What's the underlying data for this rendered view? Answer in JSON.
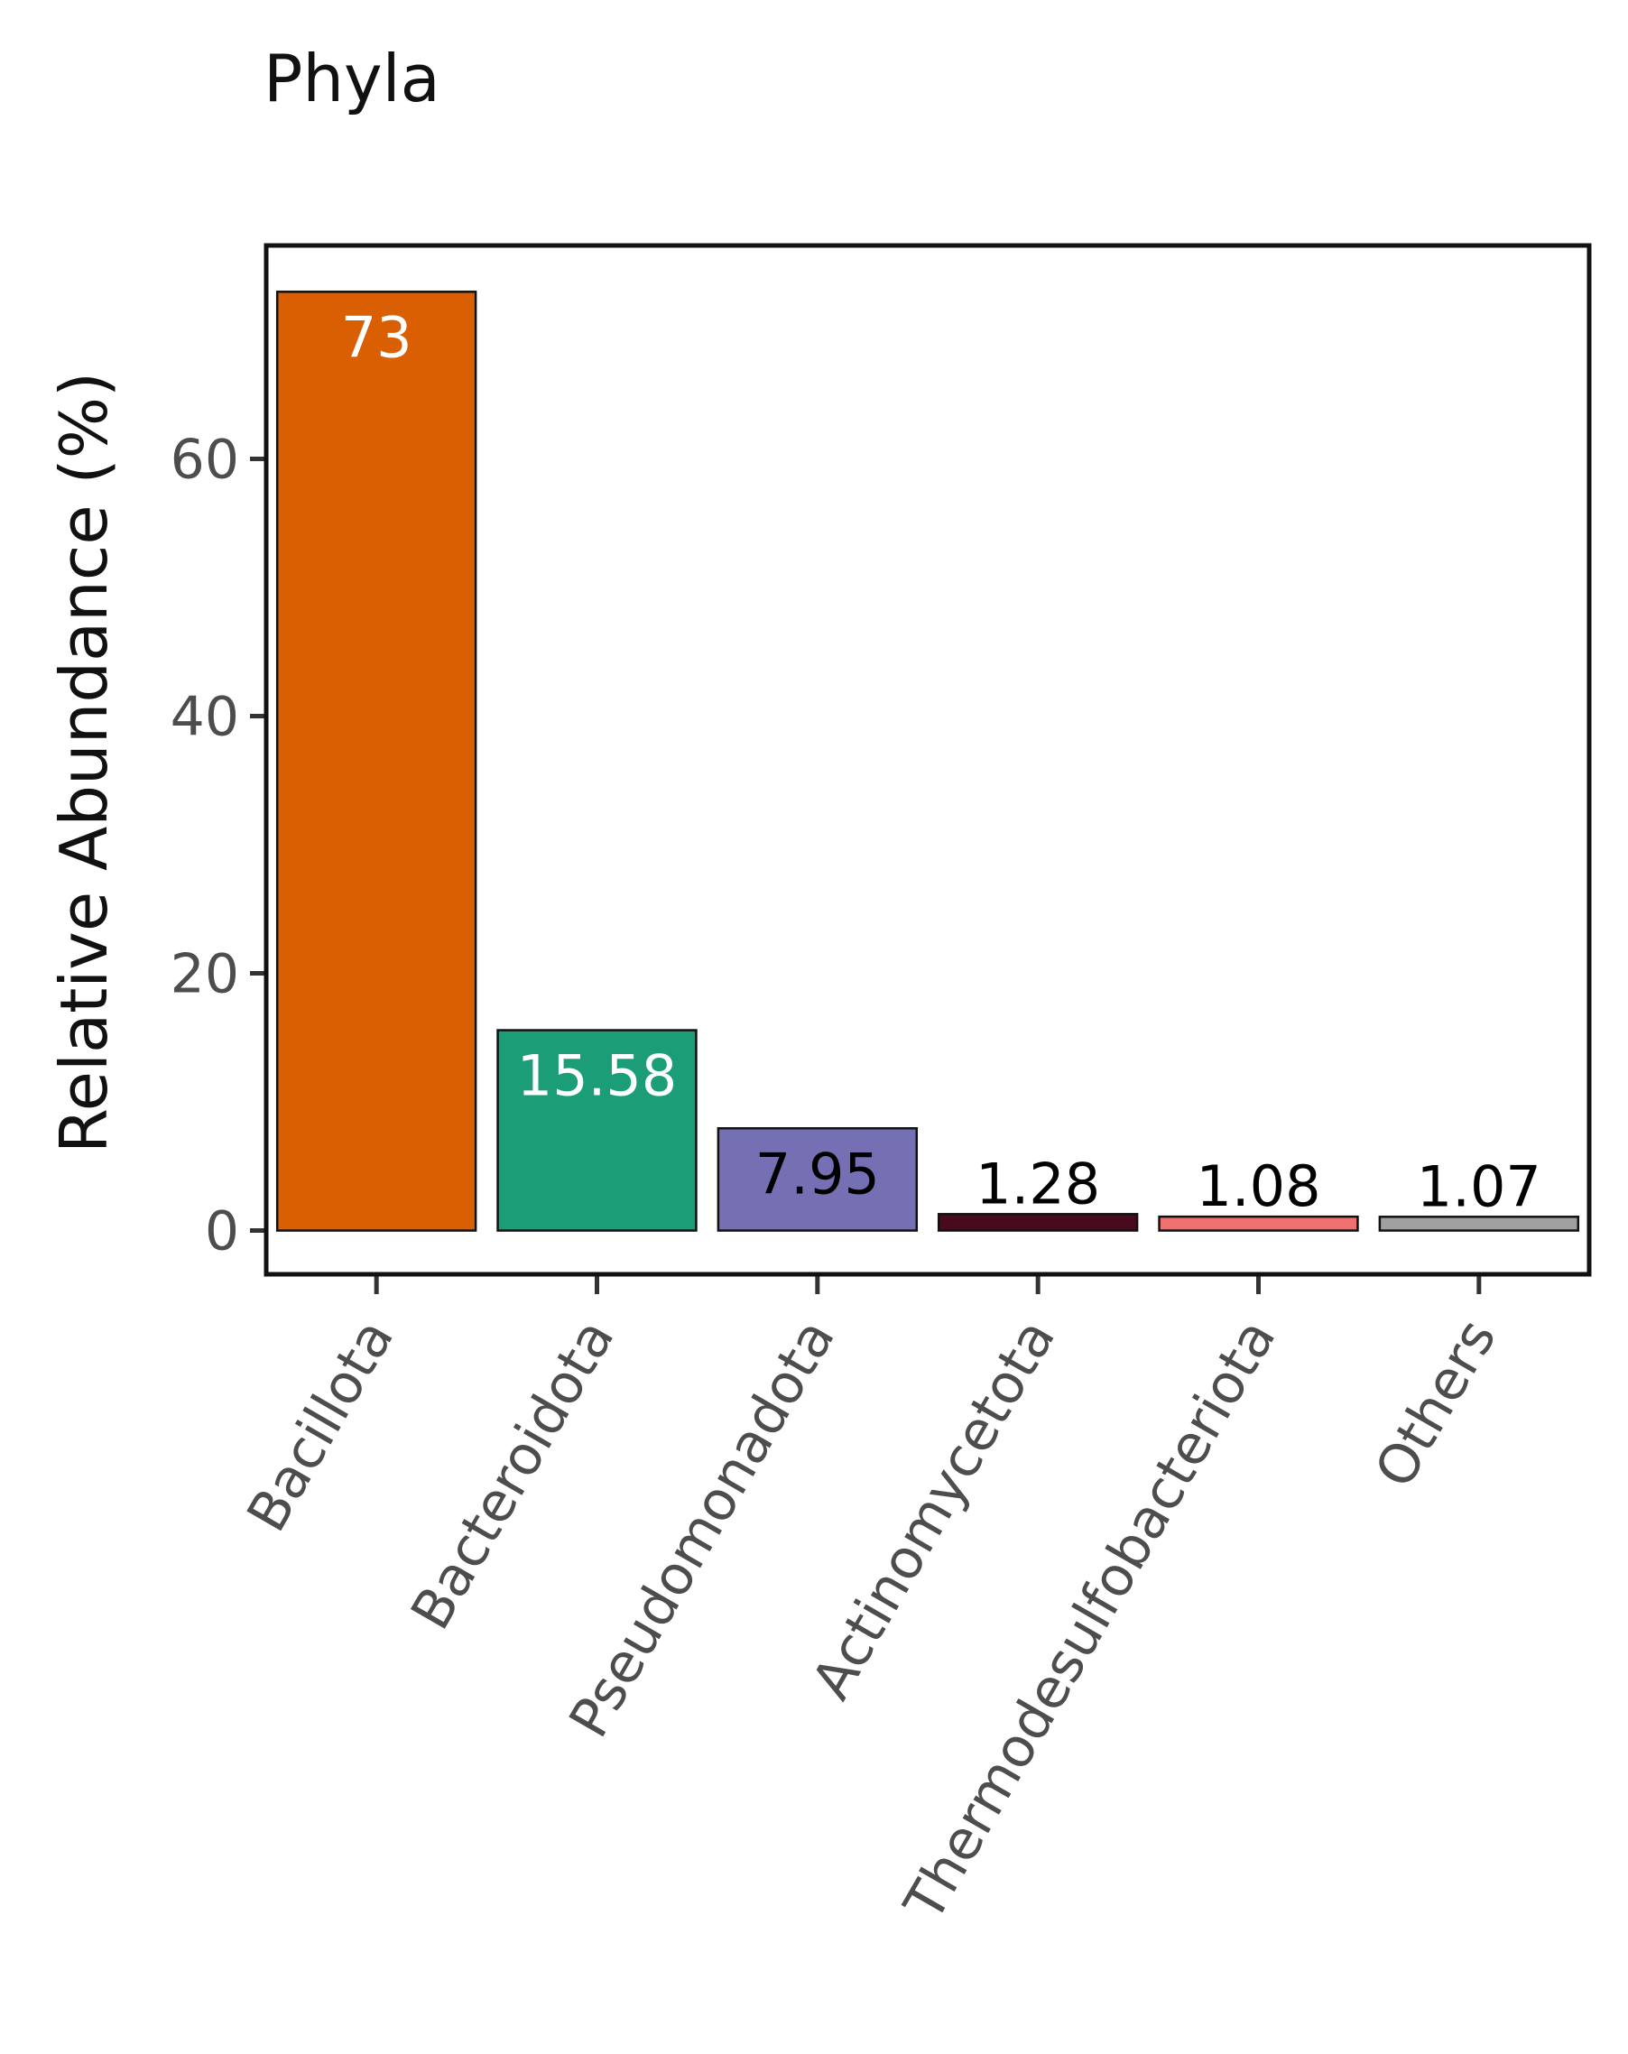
{
  "chart_data": {
    "type": "bar",
    "title": "Phyla",
    "xlabel": "",
    "ylabel": "Relative Abundance (%)",
    "categories": [
      "Bacillota",
      "Bacteroidota",
      "Pseudomonadota",
      "Actinomycetota",
      "Thermodesulfobacteriota",
      "Others"
    ],
    "values": [
      73,
      15.58,
      7.95,
      1.28,
      1.08,
      1.07
    ],
    "value_labels": [
      "73",
      "15.58",
      "7.95",
      "1.28",
      "1.08",
      "1.07"
    ],
    "colors": [
      "#d95f02",
      "#1b9e77",
      "#7570b3",
      "#4a0a1e",
      "#f07070",
      "#a0a0a0"
    ],
    "label_colors": [
      "#ffffff",
      "#ffffff",
      "#000000",
      "#000000",
      "#000000",
      "#000000"
    ],
    "yticks": [
      0,
      20,
      40,
      60
    ],
    "ytick_labels": [
      "0",
      "20",
      "40",
      "60"
    ],
    "ylim": [
      -3.4,
      76.6
    ],
    "grid": false,
    "legend": "none"
  }
}
